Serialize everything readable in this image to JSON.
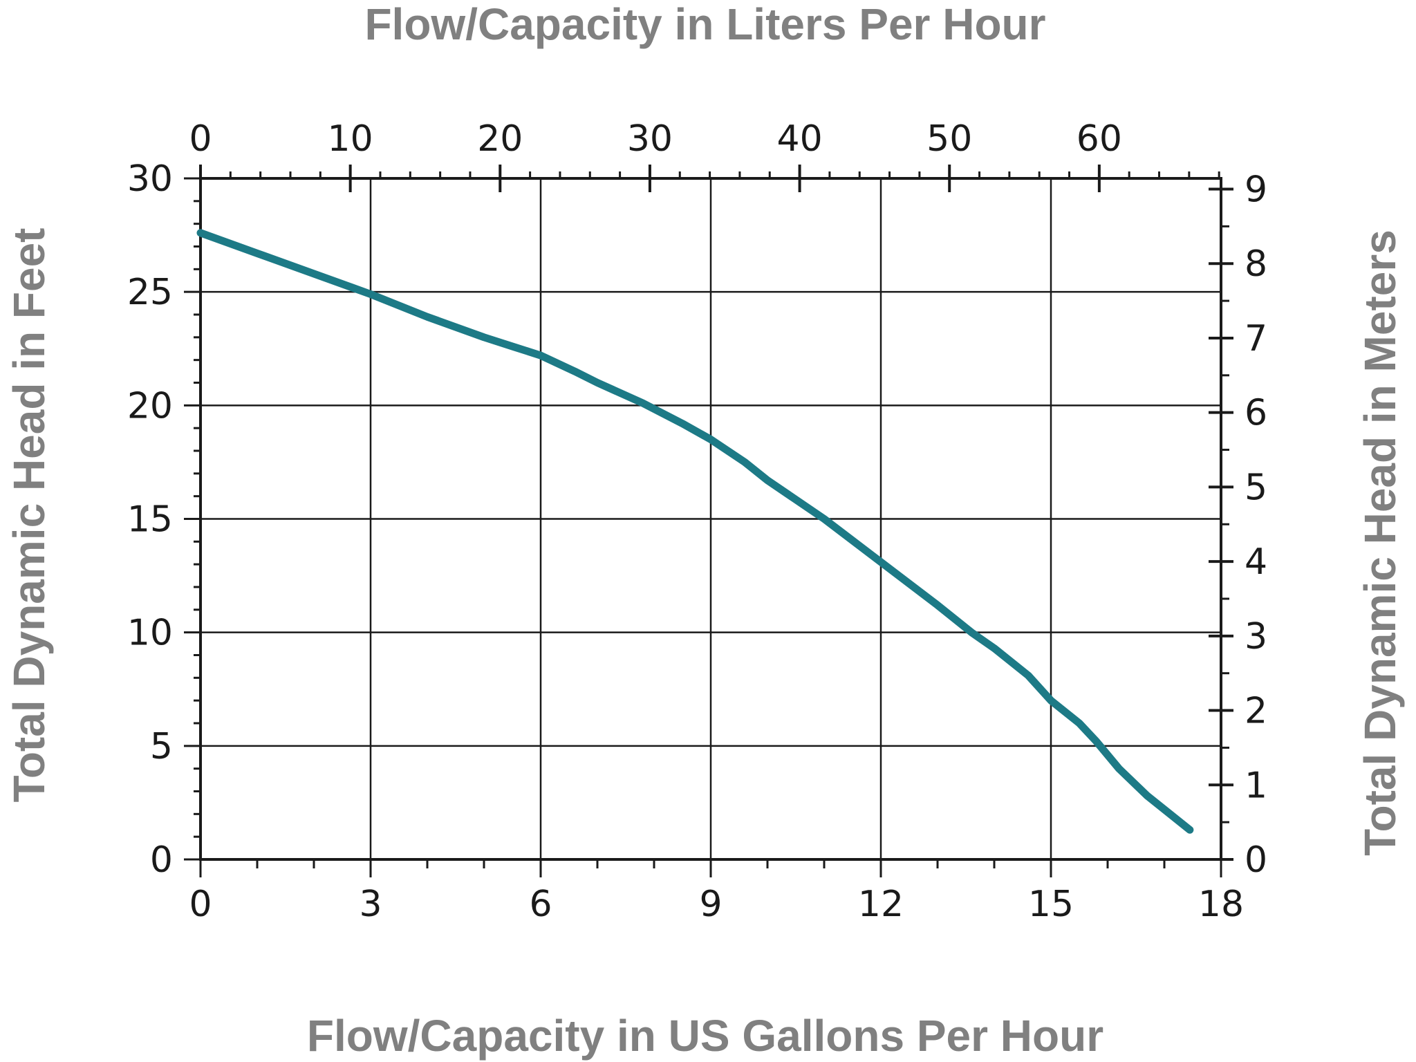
{
  "chart_data": {
    "type": "line",
    "top_xlabel": "Flow/Capacity in Liters Per Hour",
    "xlabel": "Flow/Capacity in US Gallons Per Hour",
    "ylabel": "Total Dynamic Head in Feet",
    "y2label": "Total Dynamic Head in Meters",
    "xlim": [
      0,
      18
    ],
    "ylim": [
      0,
      30
    ],
    "top_xlim": [
      0,
      68.13
    ],
    "y2lim": [
      0,
      9.144
    ],
    "x_ticks": [
      0,
      3,
      6,
      9,
      12,
      15,
      18
    ],
    "y_ticks": [
      0,
      5,
      10,
      15,
      20,
      25,
      30
    ],
    "top_x_ticks": [
      0,
      10,
      20,
      30,
      40,
      50,
      60
    ],
    "y2_ticks": [
      0,
      1,
      2,
      3,
      4,
      5,
      6,
      7,
      8,
      9
    ],
    "grid": true,
    "line_color": "#1d7a86",
    "series": [
      {
        "x": [
          0,
          1,
          2,
          3,
          4,
          5,
          5.5,
          6,
          6.6,
          7,
          7.8,
          8.5,
          9,
          9.6,
          10,
          11,
          12,
          13,
          13.6,
          14,
          14.6,
          15,
          15.5,
          15.8,
          16.2,
          16.7,
          17.1,
          17.45
        ],
        "y": [
          27.6,
          26.7,
          25.8,
          24.9,
          23.9,
          23.0,
          22.6,
          22.2,
          21.5,
          21.0,
          20.1,
          19.2,
          18.5,
          17.5,
          16.7,
          15.0,
          13.1,
          11.2,
          10.0,
          9.3,
          8.1,
          7.0,
          6.0,
          5.2,
          4.0,
          2.8,
          2.0,
          1.3
        ]
      }
    ]
  }
}
